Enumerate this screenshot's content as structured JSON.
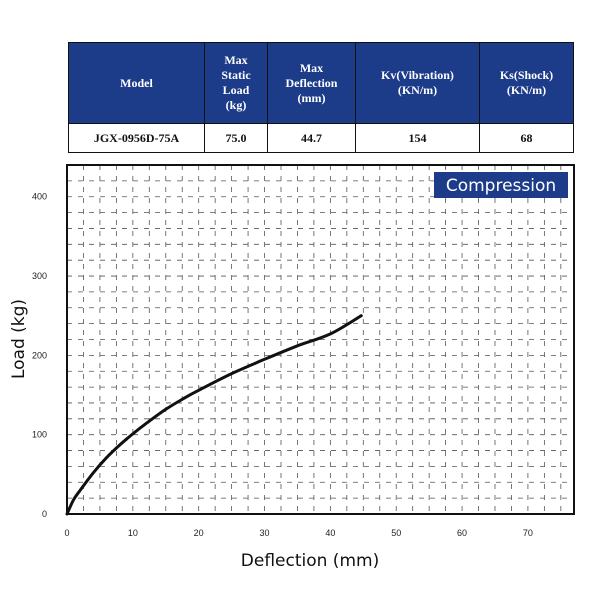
{
  "spec_table": {
    "headers": [
      [
        "Model"
      ],
      [
        "Max",
        "Static",
        "Load",
        "(kg)"
      ],
      [
        "Max",
        "Deflection",
        "(mm)"
      ],
      [
        "Kv(Vibration)",
        "(KN/m)"
      ],
      [
        "Ks(Shock)",
        "(KN/m)"
      ]
    ],
    "row": {
      "model": "JGX-0956D-75A",
      "max_static_load": "75.0",
      "max_deflection": "44.7",
      "kv": "154",
      "ks": "68"
    }
  },
  "chart_data": {
    "type": "line",
    "legend_label": "Compression",
    "xlabel": "Deflection (mm)",
    "ylabel": "Load (kg)",
    "xlim": [
      0,
      77
    ],
    "ylim": [
      0,
      440
    ],
    "xticks": [
      0,
      10,
      20,
      30,
      40,
      50,
      60,
      70
    ],
    "yticks": [
      0,
      100,
      200,
      300,
      400
    ],
    "grid": true,
    "series": [
      {
        "color": "#111111",
        "x": [
          0,
          1,
          2,
          4,
          6,
          8,
          10,
          12,
          15,
          18,
          20,
          25,
          30,
          35,
          40,
          44.7
        ],
        "y": [
          0,
          18,
          30,
          52,
          71,
          87,
          101,
          114,
          132,
          147,
          156,
          177,
          195,
          212,
          227,
          250
        ]
      }
    ]
  }
}
